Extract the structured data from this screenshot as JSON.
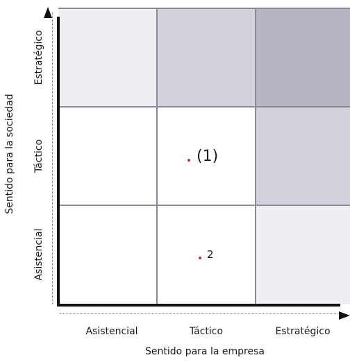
{
  "x_axis": {
    "title": "Sentido para la empresa",
    "levels": [
      "Asistencial",
      "Táctico",
      "Estratégico"
    ]
  },
  "y_axis": {
    "title": "Sentido para la sociedad",
    "levels": [
      "Asistencial",
      "Táctico",
      "Estratégico"
    ]
  },
  "cell_colors": {
    "top_left": "#efeff3",
    "top_middle": "#d2d2dc",
    "top_right": "#b5b5c1",
    "middle_left": "#ffffff",
    "middle_middle": "#ffffff",
    "middle_right": "#d2d2dc",
    "bottom_left": "#ffffff",
    "bottom_middle": "#ffffff",
    "bottom_right": "#efeff3"
  },
  "points": [
    {
      "label": "(1)",
      "x_level": "Táctico",
      "y_level": "Táctico",
      "color": "#b03050"
    },
    {
      "label": "2",
      "x_level": "Táctico",
      "y_level": "Asistencial",
      "color": "#b03050"
    }
  ]
}
